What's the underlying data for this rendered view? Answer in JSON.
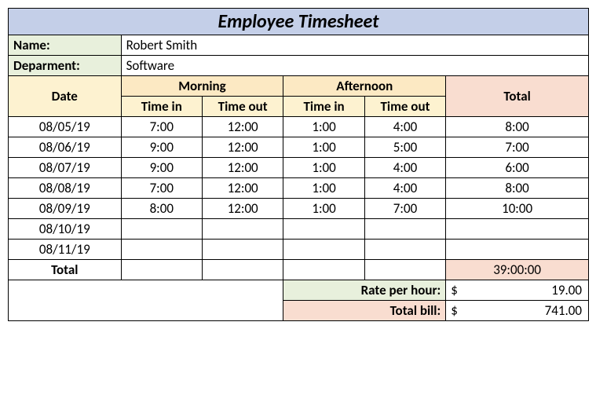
{
  "colors": {
    "title_bg": "#c4cfe8",
    "info_bg": "#e8f0dc",
    "date_hdr_bg": "#fdf2d0",
    "period_hdr_bg": "#fce9c3",
    "total_hdr_bg": "#f9ddd0",
    "total_val_bg": "#f9ddd0",
    "white": "#ffffff"
  },
  "title": "Employee Timesheet",
  "info": {
    "name_label": "Name:",
    "name_value": "Robert Smith",
    "dept_label": "Deparment:",
    "dept_value": "Software"
  },
  "headers": {
    "date": "Date",
    "morning": "Morning",
    "afternoon": "Afternoon",
    "total": "Total",
    "time_in": "Time in",
    "time_out": "Time out"
  },
  "col_widths": {
    "date": 143,
    "time": 103,
    "total": 181
  },
  "rows": [
    {
      "date": "08/05/19",
      "m_in": "7:00",
      "m_out": "12:00",
      "a_in": "1:00",
      "a_out": "4:00",
      "total": "8:00"
    },
    {
      "date": "08/06/19",
      "m_in": "9:00",
      "m_out": "12:00",
      "a_in": "1:00",
      "a_out": "5:00",
      "total": "7:00"
    },
    {
      "date": "08/07/19",
      "m_in": "9:00",
      "m_out": "12:00",
      "a_in": "1:00",
      "a_out": "4:00",
      "total": "6:00"
    },
    {
      "date": "08/08/19",
      "m_in": "7:00",
      "m_out": "12:00",
      "a_in": "1:00",
      "a_out": "4:00",
      "total": "8:00"
    },
    {
      "date": "08/09/19",
      "m_in": "8:00",
      "m_out": "12:00",
      "a_in": "1:00",
      "a_out": "7:00",
      "total": "10:00"
    },
    {
      "date": "08/10/19",
      "m_in": "",
      "m_out": "",
      "a_in": "",
      "a_out": "",
      "total": ""
    },
    {
      "date": "08/11/19",
      "m_in": "",
      "m_out": "",
      "a_in": "",
      "a_out": "",
      "total": ""
    }
  ],
  "footer": {
    "total_label": "Total",
    "total_time": "39:00:00",
    "rate_label": "Rate per hour:",
    "rate_value": "19.00",
    "bill_label": "Total bill:",
    "bill_value": "741.00",
    "currency": "$"
  }
}
